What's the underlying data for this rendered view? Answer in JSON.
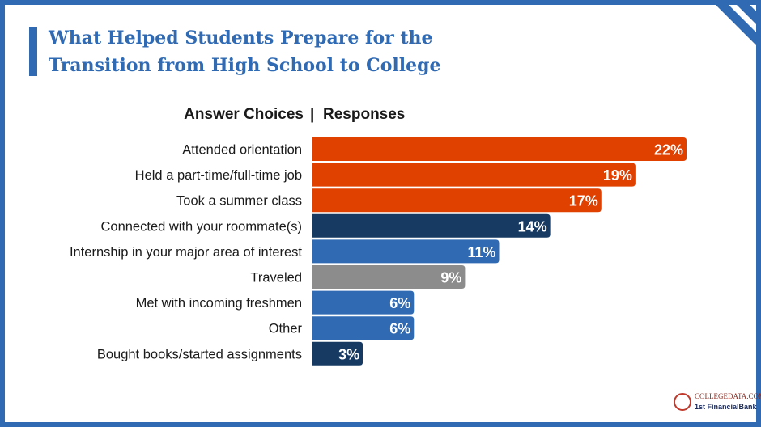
{
  "title_line1": "What Helped Students Prepare for the",
  "title_line2": "Transition from High School to College",
  "header": {
    "left": "Answer Choices",
    "separator": "|",
    "right": "Responses"
  },
  "colors": {
    "frame": "#2f6ab3",
    "orange": "#e04000",
    "navy": "#173a63",
    "blue": "#2f6ab3",
    "gray": "#8c8c8c"
  },
  "chart_data": {
    "type": "bar",
    "orientation": "horizontal",
    "categories": [
      "Attended orientation",
      "Held a part-time/full-time job",
      "Took a summer class",
      "Connected with your roommate(s)",
      "Internship in your major area of interest",
      "Traveled",
      "Met with incoming freshmen",
      "Other",
      "Bought books/started assignments"
    ],
    "values": [
      22,
      19,
      17,
      14,
      11,
      9,
      6,
      6,
      3
    ],
    "labels": [
      "22%",
      "19%",
      "17%",
      "14%",
      "11%",
      "9%",
      "6%",
      "6%",
      "3%"
    ],
    "bar_colors": [
      "#e04000",
      "#e04000",
      "#e04000",
      "#173a63",
      "#2f6ab3",
      "#8c8c8c",
      "#2f6ab3",
      "#2f6ab3",
      "#173a63"
    ],
    "unit": "%",
    "xlim": [
      0,
      22
    ]
  },
  "logo": {
    "line1": "COLLEGEDATA.COM",
    "line2": "1st FinancialBank"
  }
}
